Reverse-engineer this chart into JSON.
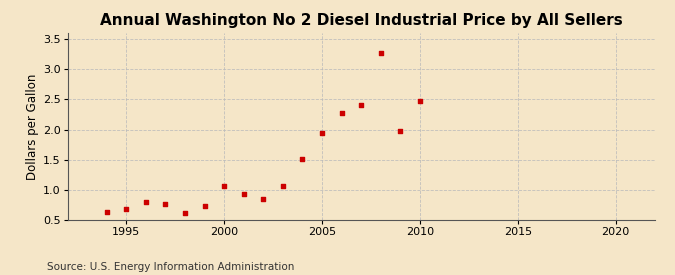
{
  "title": "Annual Washington No 2 Diesel Industrial Price by All Sellers",
  "ylabel": "Dollars per Gallon",
  "source": "Source: U.S. Energy Information Administration",
  "background_color": "#f5e6c8",
  "marker_color": "#cc0000",
  "years": [
    1994,
    1995,
    1996,
    1997,
    1998,
    1999,
    2000,
    2001,
    2002,
    2003,
    2004,
    2005,
    2006,
    2007,
    2008,
    2009,
    2010
  ],
  "values": [
    0.63,
    0.68,
    0.8,
    0.77,
    0.61,
    0.73,
    1.06,
    0.93,
    0.85,
    1.07,
    1.51,
    1.95,
    2.28,
    2.4,
    3.27,
    1.97,
    2.48
  ],
  "xlim": [
    1992,
    2022
  ],
  "ylim": [
    0.5,
    3.6
  ],
  "yticks": [
    0.5,
    1.0,
    1.5,
    2.0,
    2.5,
    3.0,
    3.5
  ],
  "xticks": [
    1995,
    2000,
    2005,
    2010,
    2015,
    2020
  ],
  "grid_color": "#bbbbbb",
  "title_fontsize": 11,
  "ylabel_fontsize": 8.5,
  "source_fontsize": 7.5,
  "tick_labelsize": 8
}
